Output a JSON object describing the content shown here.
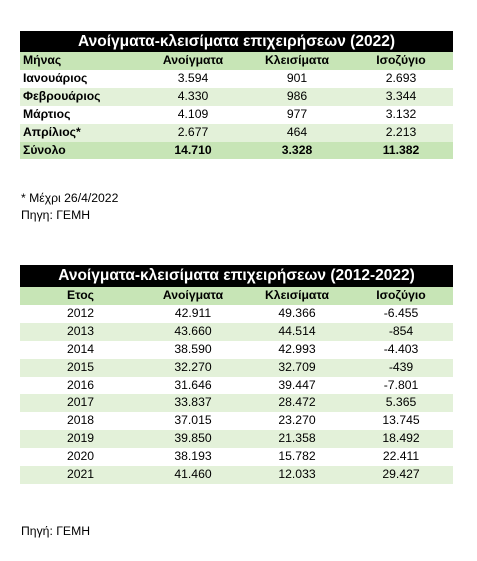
{
  "table1": {
    "title": "Ανοίγματα-κλεισίματα επιχειρήσεων (2022)",
    "headers": [
      "Μήνας",
      "Ανοίγματα",
      "Κλεισίματα",
      "Ισοζύγιο"
    ],
    "rows": [
      [
        "Ιανουάριος",
        "3.594",
        "901",
        "2.693"
      ],
      [
        "Φεβρουάριος",
        "4.330",
        "986",
        "3.344"
      ],
      [
        "Μάρτιος",
        "4.109",
        "977",
        "3.132"
      ],
      [
        "Απρίλιος*",
        "2.677",
        "464",
        "2.213"
      ]
    ],
    "total": [
      "Σύνολο",
      "14.710",
      "3.328",
      "11.382"
    ]
  },
  "notes1": {
    "footnote": "* Μέχρι 26/4/2022",
    "source": "Πηγη: ΓΕΜΗ"
  },
  "table2": {
    "title": "Ανοίγματα-κλεισίματα επιχειρήσεων (2012-2022)",
    "headers": [
      "Ετος",
      "Ανοίγματα",
      "Κλεισίματα",
      "Ισοζύγιο"
    ],
    "rows": [
      [
        "2012",
        "42.911",
        "49.366",
        "-6.455"
      ],
      [
        "2013",
        "43.660",
        "44.514",
        "-854"
      ],
      [
        "2014",
        "38.590",
        "42.993",
        "-4.403"
      ],
      [
        "2015",
        "32.270",
        "32.709",
        "-439"
      ],
      [
        "2016",
        "31.646",
        "39.447",
        "-7.801"
      ],
      [
        "2017",
        "33.837",
        "28.472",
        "5.365"
      ],
      [
        "2018",
        "37.015",
        "23.270",
        "13.745"
      ],
      [
        "2019",
        "39.850",
        "21.358",
        "18.492"
      ],
      [
        "2020",
        "38.193",
        "15.782",
        "22.411"
      ],
      [
        "2021",
        "41.460",
        "12.033",
        "29.427"
      ]
    ]
  },
  "notes2": {
    "source": "Πηγή: ΓΕΜΗ"
  }
}
